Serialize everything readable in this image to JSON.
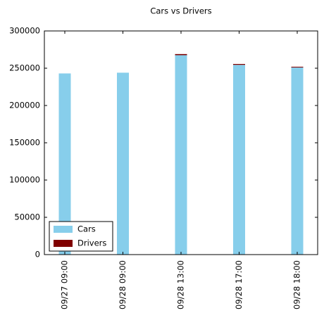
{
  "chart_data": {
    "type": "bar",
    "stacked": true,
    "title": "Cars vs Drivers",
    "categories": [
      "09/27 09:00",
      "09/28 09:00",
      "09/28 13:00",
      "09/28 17:00",
      "09/28 18:00"
    ],
    "series": [
      {
        "name": "Cars",
        "color": "#87ceeb",
        "values": [
          243000,
          244000,
          267500,
          254500,
          251000
        ]
      },
      {
        "name": "Drivers",
        "color": "#800000",
        "values": [
          0,
          0,
          1500,
          1200,
          1000
        ]
      }
    ],
    "ylim": [
      0,
      300000
    ],
    "yticks": [
      0,
      50000,
      100000,
      150000,
      200000,
      250000,
      300000
    ],
    "legend": "lower left"
  }
}
